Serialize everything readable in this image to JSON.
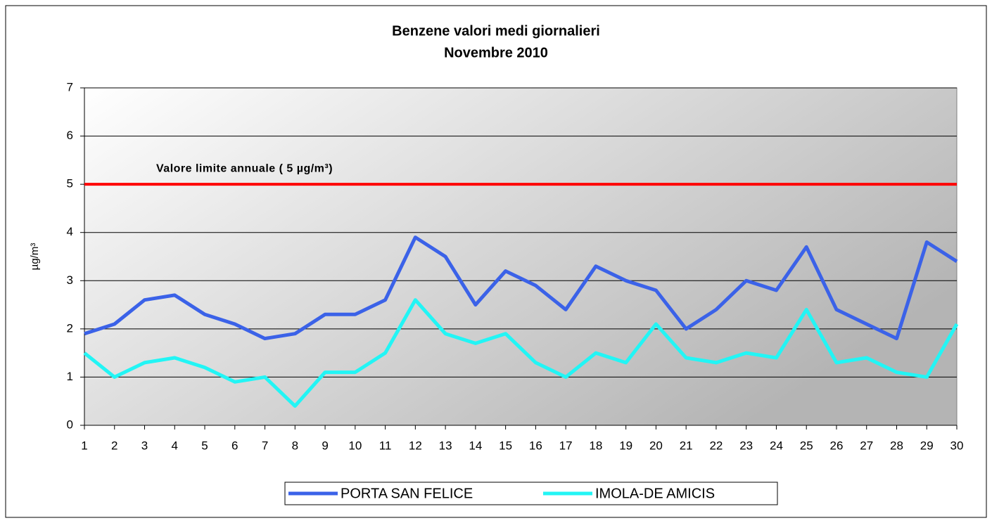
{
  "chart_data": {
    "type": "line",
    "title": [
      "Benzene valori medi giornalieri",
      "Novembre 2010"
    ],
    "y_label": "µg/m³",
    "categories": [
      "1",
      "2",
      "3",
      "4",
      "5",
      "6",
      "7",
      "8",
      "9",
      "10",
      "11",
      "12",
      "13",
      "14",
      "15",
      "16",
      "17",
      "18",
      "19",
      "20",
      "21",
      "22",
      "23",
      "24",
      "25",
      "26",
      "27",
      "28",
      "29",
      "30"
    ],
    "series": [
      {
        "name": "PORTA SAN FELICE",
        "color": "#3b62e8",
        "values": [
          1.9,
          2.1,
          2.6,
          2.7,
          2.3,
          2.1,
          1.8,
          1.9,
          2.3,
          2.3,
          2.6,
          3.9,
          3.5,
          2.5,
          3.2,
          2.9,
          2.4,
          3.3,
          3.0,
          2.8,
          2.0,
          2.4,
          3.0,
          2.8,
          3.7,
          2.4,
          2.1,
          1.8,
          3.8,
          3.4
        ]
      },
      {
        "name": "IMOLA-DE AMICIS",
        "color": "#22f5f5",
        "values": [
          1.5,
          1.0,
          1.3,
          1.4,
          1.2,
          0.9,
          1.0,
          0.4,
          1.1,
          1.1,
          1.5,
          2.6,
          1.9,
          1.7,
          1.9,
          1.3,
          1.0,
          1.5,
          1.3,
          2.1,
          1.4,
          1.3,
          1.5,
          1.4,
          2.4,
          1.3,
          1.4,
          1.1,
          1.0,
          2.1
        ]
      }
    ],
    "reference_line": {
      "value": 5,
      "label": "Valore limite annuale ( 5 µg/m³)",
      "color": "#ff0000"
    },
    "ylim": [
      0,
      7
    ],
    "yticks": [
      0,
      1,
      2,
      3,
      4,
      5,
      6,
      7
    ],
    "grid": true,
    "legend": "bottom"
  }
}
